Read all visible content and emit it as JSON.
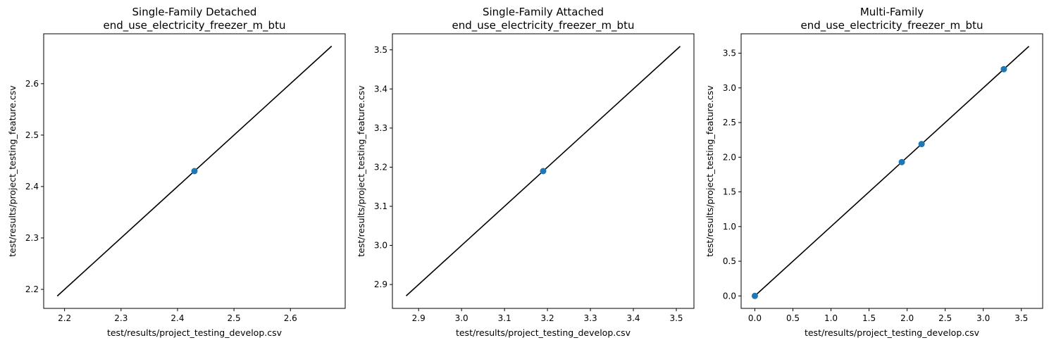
{
  "chart_data": [
    {
      "type": "scatter",
      "title": "Single-Family Detached",
      "subtitle": "end_use_electricity_freezer_m_btu",
      "xlabel": "test/results/project_testing_develop.csv",
      "ylabel": "test/results/project_testing_feature.csv",
      "xlim": [
        2.163,
        2.697
      ],
      "ylim": [
        2.163,
        2.697
      ],
      "xticks": [
        2.2,
        2.3,
        2.4,
        2.5,
        2.6
      ],
      "yticks": [
        2.2,
        2.3,
        2.4,
        2.5,
        2.6
      ],
      "tick_labels_x": [
        "2.2",
        "2.3",
        "2.4",
        "2.5",
        "2.6"
      ],
      "tick_labels_y": [
        "2.2",
        "2.3",
        "2.4",
        "2.5",
        "2.6"
      ],
      "points": [
        {
          "x": 2.43,
          "y": 2.43
        }
      ],
      "reference_line": {
        "from": [
          2.187,
          2.187
        ],
        "to": [
          2.673,
          2.673
        ],
        "color": "#000000"
      },
      "point_color": "#1f77b4",
      "grid": false
    },
    {
      "type": "scatter",
      "title": "Single-Family Attached",
      "subtitle": "end_use_electricity_freezer_m_btu",
      "xlabel": "test/results/project_testing_develop.csv",
      "ylabel": "test/results/project_testing_feature.csv",
      "xlim": [
        2.839,
        3.541
      ],
      "ylim": [
        2.839,
        3.541
      ],
      "xticks": [
        2.9,
        3.0,
        3.1,
        3.2,
        3.3,
        3.4,
        3.5
      ],
      "yticks": [
        2.9,
        3.0,
        3.1,
        3.2,
        3.3,
        3.4,
        3.5
      ],
      "tick_labels_x": [
        "2.9",
        "3.0",
        "3.1",
        "3.2",
        "3.3",
        "3.4",
        "3.5"
      ],
      "tick_labels_y": [
        "2.9",
        "3.0",
        "3.1",
        "3.2",
        "3.3",
        "3.4",
        "3.5"
      ],
      "points": [
        {
          "x": 3.19,
          "y": 3.19
        }
      ],
      "reference_line": {
        "from": [
          2.871,
          2.871
        ],
        "to": [
          3.509,
          3.509
        ],
        "color": "#000000"
      },
      "point_color": "#1f77b4",
      "grid": false
    },
    {
      "type": "scatter",
      "title": "Multi-Family",
      "subtitle": "end_use_electricity_freezer_m_btu",
      "xlabel": "test/results/project_testing_develop.csv",
      "ylabel": "test/results/project_testing_feature.csv",
      "xlim": [
        -0.18,
        3.78
      ],
      "ylim": [
        -0.18,
        3.78
      ],
      "xticks": [
        0.0,
        0.5,
        1.0,
        1.5,
        2.0,
        2.5,
        3.0,
        3.5
      ],
      "yticks": [
        0.0,
        0.5,
        1.0,
        1.5,
        2.0,
        2.5,
        3.0,
        3.5
      ],
      "tick_labels_x": [
        "0.0",
        "0.5",
        "1.0",
        "1.5",
        "2.0",
        "2.5",
        "3.0",
        "3.5"
      ],
      "tick_labels_y": [
        "0.0",
        "0.5",
        "1.0",
        "1.5",
        "2.0",
        "2.5",
        "3.0",
        "3.5"
      ],
      "points": [
        {
          "x": 0.0,
          "y": 0.0
        },
        {
          "x": 1.93,
          "y": 1.93
        },
        {
          "x": 2.19,
          "y": 2.19
        },
        {
          "x": 3.27,
          "y": 3.27
        }
      ],
      "reference_line": {
        "from": [
          0.0,
          0.0
        ],
        "to": [
          3.6,
          3.6
        ],
        "color": "#000000"
      },
      "point_color": "#1f77b4",
      "grid": false
    }
  ]
}
